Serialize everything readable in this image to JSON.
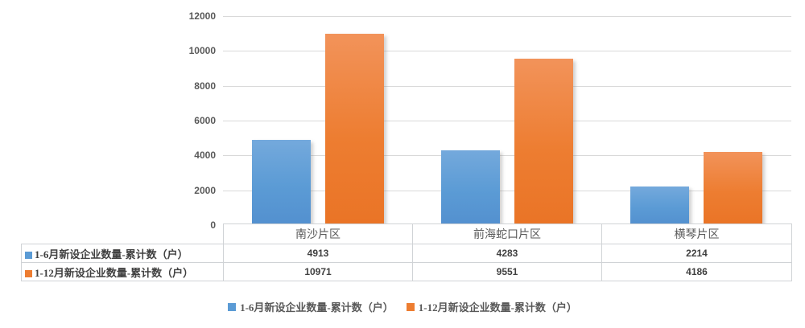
{
  "chart_data": {
    "type": "bar",
    "title": "",
    "xlabel": "",
    "ylabel": "",
    "categories": [
      "南沙片区",
      "前海蛇口片区",
      "横琴片区"
    ],
    "series": [
      {
        "name": "1-6月新设企业数量-累计数（户）",
        "color": "#5b9bd5",
        "values": [
          4913,
          4283,
          2214
        ]
      },
      {
        "name": "1-12月新设企业数量-累计数（户）",
        "color": "#ed7d31",
        "values": [
          10971,
          9551,
          4186
        ]
      }
    ],
    "ylim": [
      0,
      12000
    ],
    "ytick_interval": 2000,
    "yticks": [
      "0",
      "2000",
      "4000",
      "6000",
      "8000",
      "10000",
      "12000"
    ],
    "grid": true,
    "legend_position": "bottom",
    "data_table_shown": true
  },
  "colors": {
    "gridline": "#d9d9d9",
    "axis_text": "#595959",
    "table_border": "#d0d3d6",
    "series_blue": "#5b9bd5",
    "series_orange": "#ed7d31",
    "background": "#ffffff"
  }
}
